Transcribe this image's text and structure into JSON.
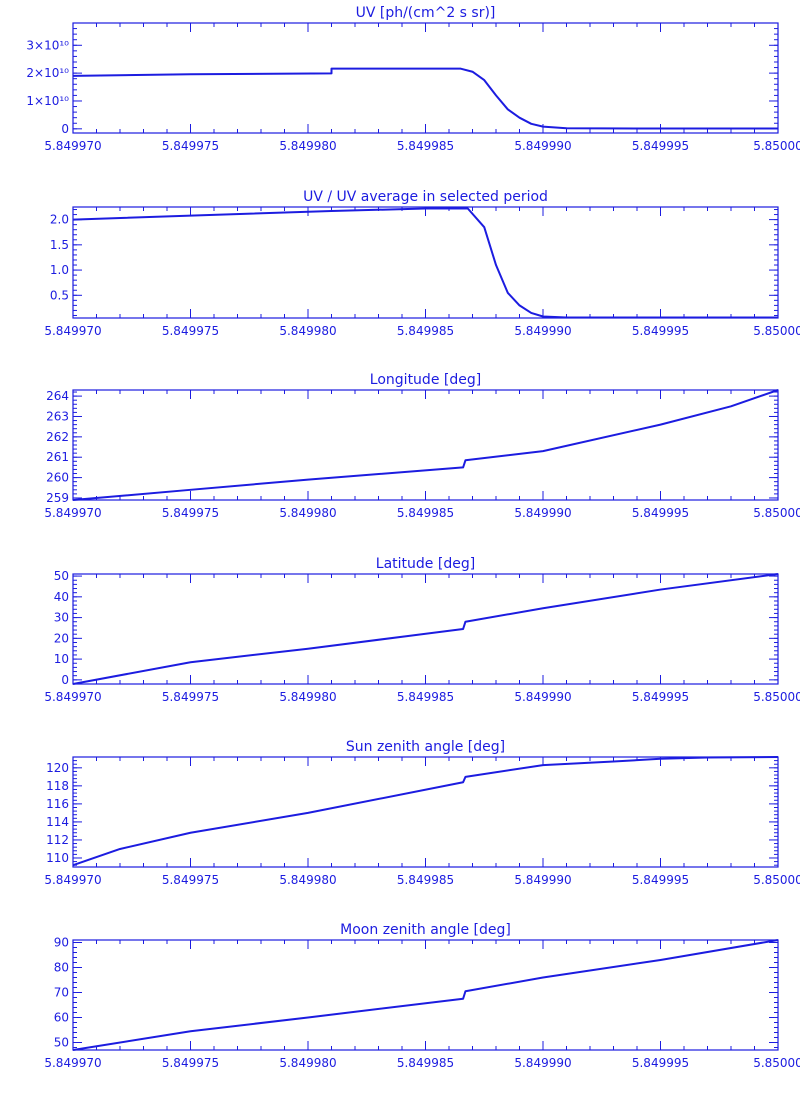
{
  "chart_data": [
    {
      "type": "line",
      "title": "UV [ph/(cm^2 s sr)]",
      "xlim": [
        5.84997,
        5.85
      ],
      "ylim": [
        -1500000000.0,
        38000000000.0
      ],
      "x_ticks": [
        {
          "value": 5.84997,
          "label": "5.849970"
        },
        {
          "value": 5.849975,
          "label": "5.849975"
        },
        {
          "value": 5.84998,
          "label": "5.849980"
        },
        {
          "value": 5.849985,
          "label": "5.849985"
        },
        {
          "value": 5.84999,
          "label": "5.849990"
        },
        {
          "value": 5.849995,
          "label": "5.849995"
        },
        {
          "value": 5.85,
          "label": "5.85000"
        }
      ],
      "y_ticks": [
        {
          "value": 0,
          "label": "0"
        },
        {
          "value": 10000000000.0,
          "label": "1×10¹⁰"
        },
        {
          "value": 20000000000.0,
          "label": "2×10¹⁰"
        },
        {
          "value": 30000000000.0,
          "label": "3×10¹⁰"
        }
      ],
      "series": [
        {
          "x": [
            5.84997,
            5.849975,
            5.849981,
            5.849981,
            5.8499865,
            5.849987,
            5.8499875,
            5.849988,
            5.8499885,
            5.849989,
            5.8499895,
            5.84999,
            5.849991,
            5.849995,
            5.85
          ],
          "y": [
            19000000000.0,
            19600000000.0,
            19900000000.0,
            21600000000.0,
            21600000000.0,
            20500000000.0,
            17500000000.0,
            12000000000.0,
            7000000000.0,
            4000000000.0,
            1800000000.0,
            800000000.0,
            200000000.0,
            100000000.0,
            100000000.0
          ]
        }
      ]
    },
    {
      "type": "line",
      "title": "UV / UV average in selected period",
      "xlim": [
        5.84997,
        5.85
      ],
      "ylim": [
        0.05,
        2.25
      ],
      "x_ticks": [
        {
          "value": 5.84997,
          "label": "5.849970"
        },
        {
          "value": 5.849975,
          "label": "5.849975"
        },
        {
          "value": 5.84998,
          "label": "5.849980"
        },
        {
          "value": 5.849985,
          "label": "5.849985"
        },
        {
          "value": 5.84999,
          "label": "5.849990"
        },
        {
          "value": 5.849995,
          "label": "5.849995"
        },
        {
          "value": 5.85,
          "label": "5.85000"
        }
      ],
      "y_ticks": [
        {
          "value": 0.5,
          "label": "0.5"
        },
        {
          "value": 1.0,
          "label": "1.0"
        },
        {
          "value": 1.5,
          "label": "1.5"
        },
        {
          "value": 2.0,
          "label": "2.0"
        }
      ],
      "series": [
        {
          "x": [
            5.84997,
            5.849975,
            5.849981,
            5.849985,
            5.8499868,
            5.8499875,
            5.849988,
            5.8499885,
            5.849989,
            5.8499895,
            5.84999,
            5.849991,
            5.849995,
            5.85
          ],
          "y": [
            2.0,
            2.08,
            2.17,
            2.22,
            2.22,
            1.85,
            1.1,
            0.55,
            0.3,
            0.15,
            0.08,
            0.06,
            0.06,
            0.06
          ]
        }
      ]
    },
    {
      "type": "line",
      "title": "Longitude [deg]",
      "xlim": [
        5.84997,
        5.85
      ],
      "ylim": [
        258.9,
        264.3
      ],
      "x_ticks": [
        {
          "value": 5.84997,
          "label": "5.849970"
        },
        {
          "value": 5.849975,
          "label": "5.849975"
        },
        {
          "value": 5.84998,
          "label": "5.849980"
        },
        {
          "value": 5.849985,
          "label": "5.849985"
        },
        {
          "value": 5.84999,
          "label": "5.849990"
        },
        {
          "value": 5.849995,
          "label": "5.849995"
        },
        {
          "value": 5.85,
          "label": "5.85000"
        }
      ],
      "y_ticks": [
        {
          "value": 259,
          "label": "259"
        },
        {
          "value": 260,
          "label": "260"
        },
        {
          "value": 261,
          "label": "261"
        },
        {
          "value": 262,
          "label": "262"
        },
        {
          "value": 263,
          "label": "263"
        },
        {
          "value": 264,
          "label": "264"
        }
      ],
      "series": [
        {
          "x": [
            5.84997,
            5.849975,
            5.84998,
            5.8499866,
            5.8499867,
            5.84999,
            5.849995,
            5.849998,
            5.85
          ],
          "y": [
            258.9,
            259.4,
            259.9,
            260.5,
            260.85,
            261.3,
            262.6,
            263.5,
            264.3
          ]
        }
      ]
    },
    {
      "type": "line",
      "title": "Latitude [deg]",
      "xlim": [
        5.84997,
        5.85
      ],
      "ylim": [
        -2,
        51
      ],
      "x_ticks": [
        {
          "value": 5.84997,
          "label": "5.849970"
        },
        {
          "value": 5.849975,
          "label": "5.849975"
        },
        {
          "value": 5.84998,
          "label": "5.849980"
        },
        {
          "value": 5.849985,
          "label": "5.849985"
        },
        {
          "value": 5.84999,
          "label": "5.849990"
        },
        {
          "value": 5.849995,
          "label": "5.849995"
        },
        {
          "value": 5.85,
          "label": "5.85000"
        }
      ],
      "y_ticks": [
        {
          "value": 0,
          "label": "0"
        },
        {
          "value": 10,
          "label": "10"
        },
        {
          "value": 20,
          "label": "20"
        },
        {
          "value": 30,
          "label": "30"
        },
        {
          "value": 40,
          "label": "40"
        },
        {
          "value": 50,
          "label": "50"
        }
      ],
      "series": [
        {
          "x": [
            5.84997,
            5.849975,
            5.84998,
            5.8499866,
            5.8499867,
            5.84999,
            5.849995,
            5.85
          ],
          "y": [
            -2,
            8.5,
            15,
            24.5,
            28,
            34.5,
            43.5,
            51
          ]
        }
      ]
    },
    {
      "type": "line",
      "title": "Sun zenith angle [deg]",
      "xlim": [
        5.84997,
        5.85
      ],
      "ylim": [
        109,
        121.2
      ],
      "x_ticks": [
        {
          "value": 5.84997,
          "label": "5.849970"
        },
        {
          "value": 5.849975,
          "label": "5.849975"
        },
        {
          "value": 5.84998,
          "label": "5.849980"
        },
        {
          "value": 5.849985,
          "label": "5.849985"
        },
        {
          "value": 5.84999,
          "label": "5.849990"
        },
        {
          "value": 5.849995,
          "label": "5.849995"
        },
        {
          "value": 5.85,
          "label": "5.85000"
        }
      ],
      "y_ticks": [
        {
          "value": 110,
          "label": "110"
        },
        {
          "value": 112,
          "label": "112"
        },
        {
          "value": 114,
          "label": "114"
        },
        {
          "value": 116,
          "label": "116"
        },
        {
          "value": 118,
          "label": "118"
        },
        {
          "value": 120,
          "label": "120"
        }
      ],
      "series": [
        {
          "x": [
            5.84997,
            5.849972,
            5.849975,
            5.84998,
            5.8499866,
            5.8499867,
            5.84999,
            5.849993,
            5.849995,
            5.849997,
            5.85
          ],
          "y": [
            109.2,
            111.0,
            112.8,
            115.0,
            118.4,
            119.0,
            120.3,
            120.7,
            121.0,
            121.15,
            121.2
          ]
        }
      ]
    },
    {
      "type": "line",
      "title": "Moon zenith angle [deg]",
      "xlim": [
        5.84997,
        5.85
      ],
      "ylim": [
        47,
        91
      ],
      "x_ticks": [
        {
          "value": 5.84997,
          "label": "5.849970"
        },
        {
          "value": 5.849975,
          "label": "5.849975"
        },
        {
          "value": 5.84998,
          "label": "5.849980"
        },
        {
          "value": 5.849985,
          "label": "5.849985"
        },
        {
          "value": 5.84999,
          "label": "5.849990"
        },
        {
          "value": 5.849995,
          "label": "5.849995"
        },
        {
          "value": 5.85,
          "label": "5.85000"
        }
      ],
      "y_ticks": [
        {
          "value": 50,
          "label": "50"
        },
        {
          "value": 60,
          "label": "60"
        },
        {
          "value": 70,
          "label": "70"
        },
        {
          "value": 80,
          "label": "80"
        },
        {
          "value": 90,
          "label": "90"
        }
      ],
      "series": [
        {
          "x": [
            5.84997,
            5.849975,
            5.84998,
            5.8499866,
            5.8499867,
            5.84999,
            5.849995,
            5.85
          ],
          "y": [
            47,
            54.5,
            60,
            67.5,
            70.5,
            76,
            83,
            91
          ]
        }
      ]
    }
  ],
  "colors": {
    "ink": "#1c1ce0",
    "background": "#ffffff"
  }
}
